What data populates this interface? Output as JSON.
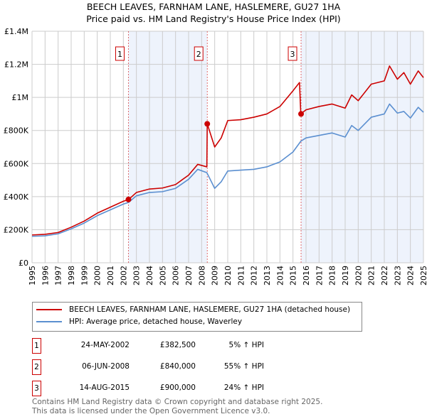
{
  "chart_data": {
    "type": "line",
    "title": "BEECH LEAVES, FARNHAM LANE, HASLEMERE, GU27 1HA",
    "subtitle": "Price paid vs. HM Land Registry's House Price Index (HPI)",
    "xlabel": "",
    "ylabel": "",
    "xlim": [
      1995,
      2025
    ],
    "ylim": [
      0,
      1400000
    ],
    "x_ticks": [
      "1995",
      "1996",
      "1997",
      "1998",
      "1999",
      "2000",
      "2001",
      "2002",
      "2003",
      "2004",
      "2005",
      "2006",
      "2007",
      "2008",
      "2009",
      "2010",
      "2011",
      "2012",
      "2013",
      "2014",
      "2015",
      "2016",
      "2017",
      "2018",
      "2019",
      "2020",
      "2021",
      "2022",
      "2023",
      "2024",
      "2025"
    ],
    "y_ticks": [
      {
        "v": 0,
        "l": "£0"
      },
      {
        "v": 200000,
        "l": "£200K"
      },
      {
        "v": 400000,
        "l": "£400K"
      },
      {
        "v": 600000,
        "l": "£600K"
      },
      {
        "v": 800000,
        "l": "£800K"
      },
      {
        "v": 1000000,
        "l": "£1M"
      },
      {
        "v": 1200000,
        "l": "£1.2M"
      },
      {
        "v": 1400000,
        "l": "£1.4M"
      }
    ],
    "grid": true,
    "colors": {
      "property": "#cc0000",
      "hpi": "#5b8fd0",
      "shade": "#eef3fc"
    },
    "series": [
      {
        "name": "BEECH LEAVES, FARNHAM LANE, HASLEMERE, GU27 1HA (detached house)",
        "x": [
          1995,
          1996,
          1997,
          1998,
          1999,
          2000,
          2001,
          2002,
          2002.4,
          2003,
          2004,
          2005,
          2006,
          2007,
          2007.7,
          2008.4,
          2008.43,
          2009,
          2009.5,
          2010,
          2011,
          2012,
          2013,
          2014,
          2015,
          2015.5,
          2015.6,
          2016,
          2017,
          2018,
          2019,
          2019.5,
          2020,
          2021,
          2022,
          2022.4,
          2023,
          2023.5,
          2024,
          2024.6,
          2025
        ],
        "values": [
          168000,
          172000,
          183000,
          215000,
          252000,
          300000,
          336000,
          372000,
          382500,
          425000,
          446000,
          452000,
          473000,
          530000,
          595000,
          580000,
          840000,
          700000,
          755000,
          860000,
          865000,
          880000,
          900000,
          945000,
          1040000,
          1090000,
          900000,
          925000,
          945000,
          960000,
          935000,
          1015000,
          980000,
          1080000,
          1100000,
          1190000,
          1110000,
          1150000,
          1080000,
          1160000,
          1120000
        ]
      },
      {
        "name": "HPI: Average price, detached house, Waverley",
        "x": [
          1995,
          1996,
          1997,
          1998,
          1999,
          2000,
          2001,
          2002,
          2002.4,
          2003,
          2004,
          2005,
          2006,
          2007,
          2007.7,
          2008.4,
          2009,
          2009.5,
          2010,
          2011,
          2012,
          2013,
          2014,
          2015,
          2015.6,
          2016,
          2017,
          2018,
          2019,
          2019.5,
          2020,
          2021,
          2022,
          2022.4,
          2023,
          2023.5,
          2024,
          2024.6,
          2025
        ],
        "values": [
          160000,
          163000,
          175000,
          205000,
          240000,
          285000,
          320000,
          355000,
          365000,
          405000,
          425000,
          430000,
          450000,
          505000,
          565000,
          545000,
          450000,
          490000,
          555000,
          560000,
          565000,
          580000,
          610000,
          670000,
          735000,
          755000,
          770000,
          785000,
          760000,
          830000,
          800000,
          880000,
          900000,
          960000,
          905000,
          915000,
          875000,
          940000,
          910000
        ]
      }
    ],
    "sales": [
      {
        "label": "1",
        "date": "24-MAY-2002",
        "x": 2002.39,
        "price": "£382,500",
        "value": 382500,
        "hpi": "5% ↑ HPI"
      },
      {
        "label": "2",
        "date": "06-JUN-2008",
        "x": 2008.43,
        "price": "£840,000",
        "value": 840000,
        "hpi": "55% ↑ HPI"
      },
      {
        "label": "3",
        "date": "14-AUG-2015",
        "x": 2015.62,
        "price": "£900,000",
        "value": 900000,
        "hpi": "24% ↑ HPI"
      }
    ]
  },
  "footer": {
    "line1": "Contains HM Land Registry data © Crown copyright and database right 2025.",
    "line2": "This data is licensed under the Open Government Licence v3.0."
  }
}
